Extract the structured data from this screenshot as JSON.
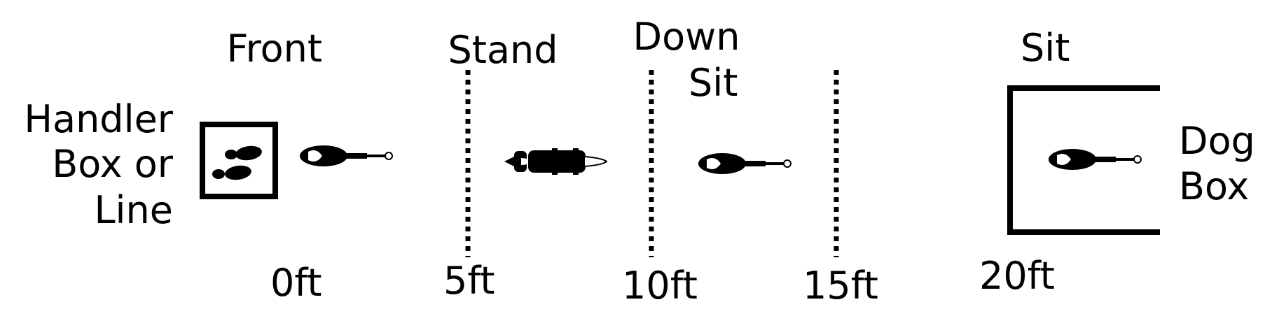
{
  "positions": {
    "front": "Front",
    "stand": "Stand",
    "down_sit": [
      "Down",
      "Sit"
    ],
    "sit": "Sit"
  },
  "handler_box": [
    "Handler",
    "Box or",
    "Line"
  ],
  "dog_box": [
    "Dog",
    "Box"
  ],
  "distances": [
    "0ft",
    "5ft",
    "10ft",
    "15ft",
    "20ft"
  ],
  "colors": {
    "ink": "#000000",
    "background": "#ffffff"
  },
  "icons": {
    "handler": "footprints-icon",
    "dog_sitting": "dog-sit-topview-icon",
    "dog_standing": "dog-stand-topview-icon"
  }
}
